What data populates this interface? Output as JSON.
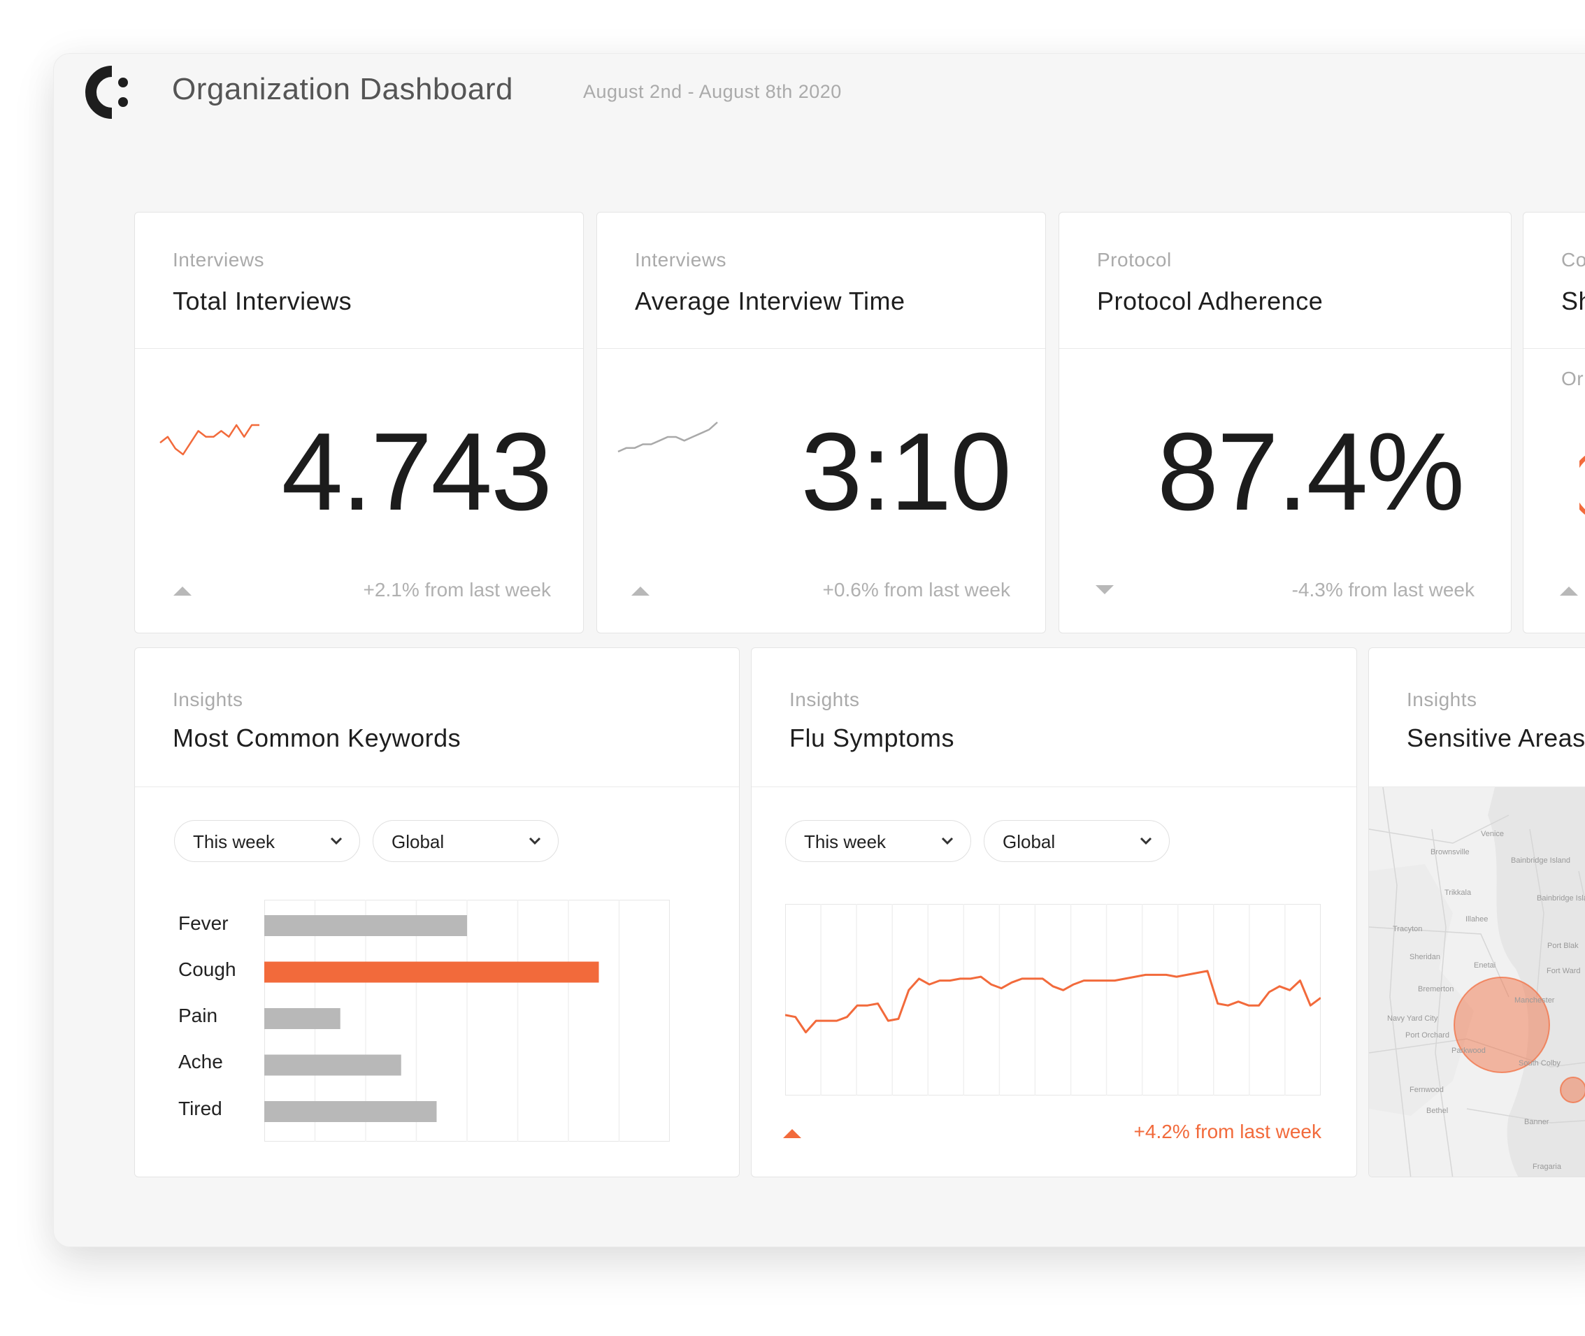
{
  "header": {
    "title": "Organization Dashboard",
    "date_range": "August 2nd - August 8th 2020"
  },
  "colors": {
    "accent": "#f26a3b",
    "muted": "#b8b8b8"
  },
  "metrics": [
    {
      "category": "Interviews",
      "title": "Total Interviews",
      "value": "4.743",
      "trend": "up",
      "change": "+2.1% from last week"
    },
    {
      "category": "Interviews",
      "title": "Average Interview Time",
      "value": "3:10",
      "trend": "up",
      "change": "+0.6% from last week"
    },
    {
      "category": "Protocol",
      "title": "Protocol Adherence",
      "value": "87.4%",
      "trend": "down",
      "change": "-4.3% from last week"
    },
    {
      "category": "Co",
      "title": "Sh",
      "subtitle": "Or",
      "trend": "up"
    }
  ],
  "insights": {
    "keywords": {
      "category": "Insights",
      "title": "Most Common Keywords",
      "filters": {
        "period": "This week",
        "scope": "Global"
      }
    },
    "flu": {
      "category": "Insights",
      "title": "Flu Symptoms",
      "filters": {
        "period": "This week",
        "scope": "Global"
      },
      "trend": "up",
      "change": "+4.2% from last week"
    },
    "sensitive": {
      "category": "Insights",
      "title": "Sensitive Areas",
      "map_labels": [
        "Venice",
        "Brownsville",
        "Bainbridge Island",
        "Trikkala",
        "Bainbridge Island",
        "Illahee",
        "Tracyton",
        "Port Blak",
        "Sheridan",
        "Enetai",
        "Fort Ward",
        "Bremerton",
        "Manchester",
        "Navy Yard City",
        "Port Orchard",
        "Parkwood",
        "South Colby",
        "Fernwood",
        "Bethel",
        "Banner",
        "Fragaria"
      ]
    }
  },
  "chart_data": [
    {
      "type": "bar",
      "orientation": "horizontal",
      "categories": [
        "Fever",
        "Cough",
        "Pain",
        "Ache",
        "Tired"
      ],
      "values": [
        40,
        66,
        15,
        27,
        34
      ],
      "xlim": [
        0,
        80
      ],
      "highlight": "Cough",
      "grid": true
    },
    {
      "type": "line",
      "values": [
        42,
        41,
        33,
        39,
        39,
        39,
        41,
        47,
        47,
        48,
        39,
        40,
        55,
        61,
        58,
        60,
        60,
        61,
        61,
        62,
        58,
        56,
        59,
        61,
        61,
        61,
        57,
        55,
        58,
        60,
        60,
        60,
        60,
        61,
        62,
        63,
        63,
        63,
        62,
        63,
        64,
        65,
        48,
        47,
        49,
        47,
        47,
        54,
        57,
        55,
        60,
        47,
        51
      ],
      "ylim": [
        0,
        100
      ],
      "grid": true
    },
    {
      "type": "line",
      "series_for": "Total Interviews sparkline",
      "values": [
        5,
        6,
        4,
        3,
        5,
        7,
        6,
        6,
        7,
        6,
        8,
        6,
        8,
        8
      ]
    },
    {
      "type": "line",
      "series_for": "Average Interview Time sparkline",
      "values": [
        2,
        3,
        3,
        4,
        4,
        5,
        6,
        6,
        5,
        6,
        7,
        8,
        10
      ]
    }
  ]
}
